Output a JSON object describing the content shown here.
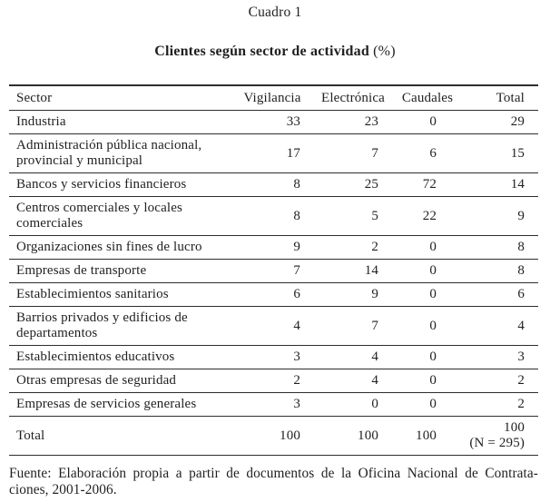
{
  "page": {
    "kicker": "Cuadro 1",
    "title": "Clientes según sector de actividad",
    "title_unit": "(%)"
  },
  "table": {
    "headers": {
      "sector": "Sector",
      "vigilancia": "Vigilancia",
      "electronica": "Electrónica",
      "caudales": "Caudales",
      "total": "Total"
    },
    "rows": [
      {
        "sector": "Industria",
        "vigilancia": "33",
        "electronica": "23",
        "caudales": "0",
        "total": "29"
      },
      {
        "sector": "Administración pública nacional, provincial y municipal",
        "vigilancia": "17",
        "electronica": "7",
        "caudales": "6",
        "total": "15"
      },
      {
        "sector": "Bancos y servicios financieros",
        "vigilancia": "8",
        "electronica": "25",
        "caudales": "72",
        "total": "14"
      },
      {
        "sector": "Centros comerciales y locales comerciales",
        "vigilancia": "8",
        "electronica": "5",
        "caudales": "22",
        "total": "9"
      },
      {
        "sector": "Organizaciones sin fines de lucro",
        "vigilancia": "9",
        "electronica": "2",
        "caudales": "0",
        "total": "8"
      },
      {
        "sector": "Empresas de transporte",
        "vigilancia": "7",
        "electronica": "14",
        "caudales": "0",
        "total": "8"
      },
      {
        "sector": "Establecimientos sanitarios",
        "vigilancia": "6",
        "electronica": "9",
        "caudales": "0",
        "total": "6"
      },
      {
        "sector": "Barrios privados y edificios de departamentos",
        "vigilancia": "4",
        "electronica": "7",
        "caudales": "0",
        "total": "4"
      },
      {
        "sector": "Establecimientos educativos",
        "vigilancia": "3",
        "electronica": "4",
        "caudales": "0",
        "total": "3"
      },
      {
        "sector": "Otras empresas de seguridad",
        "vigilancia": "2",
        "electronica": "4",
        "caudales": "0",
        "total": "2"
      },
      {
        "sector": "Empresas de servicios generales",
        "vigilancia": "3",
        "electronica": "0",
        "caudales": "0",
        "total": "2"
      },
      {
        "sector": "Total",
        "vigilancia": "100",
        "electronica": "100",
        "caudales": "100",
        "total": "100",
        "total_note": "(N = 295)"
      }
    ]
  },
  "source_note": {
    "line1": "Fuente: Elaboración propia a partir de documentos de la Oficina Nacional de Contrata-",
    "line2": "ciones, 2001-2006.",
    "full_text": "Fuente: Elaboración propia a partir de documentos de la Oficina Nacional de Contrataciones, 2001-2006."
  },
  "chart_data": {
    "type": "table",
    "title": "Cuadro 1 — Clientes según sector de actividad (%)",
    "columns": [
      "Sector",
      "Vigilancia",
      "Electrónica",
      "Caudales",
      "Total"
    ],
    "rows": [
      [
        "Industria",
        33,
        23,
        0,
        29
      ],
      [
        "Administración pública nacional, provincial y municipal",
        17,
        7,
        6,
        15
      ],
      [
        "Bancos y servicios financieros",
        8,
        25,
        72,
        14
      ],
      [
        "Centros comerciales y locales comerciales",
        8,
        5,
        22,
        9
      ],
      [
        "Organizaciones sin fines de lucro",
        9,
        2,
        0,
        8
      ],
      [
        "Empresas de transporte",
        7,
        14,
        0,
        8
      ],
      [
        "Establecimientos sanitarios",
        6,
        9,
        0,
        6
      ],
      [
        "Barrios privados y edificios de departamentos",
        4,
        7,
        0,
        4
      ],
      [
        "Establecimientos educativos",
        3,
        4,
        0,
        3
      ],
      [
        "Otras empresas de seguridad",
        2,
        4,
        0,
        2
      ],
      [
        "Empresas de servicios generales",
        3,
        0,
        0,
        2
      ],
      [
        "Total",
        100,
        100,
        100,
        100
      ]
    ],
    "footnote": "Total N = 295"
  }
}
